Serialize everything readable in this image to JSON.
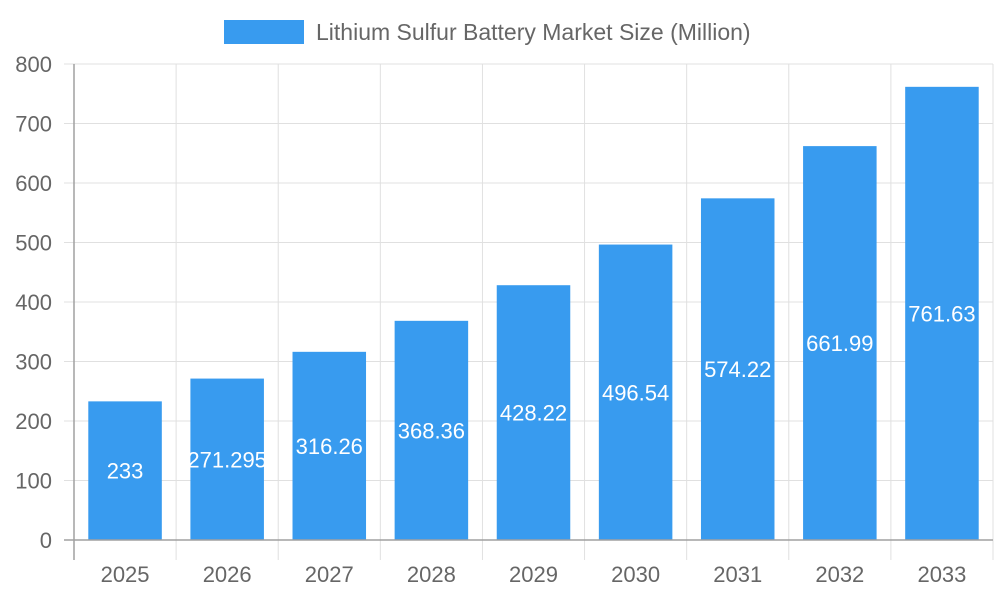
{
  "chart_data": {
    "type": "bar",
    "categories": [
      "2025",
      "2026",
      "2027",
      "2028",
      "2029",
      "2030",
      "2031",
      "2032",
      "2033"
    ],
    "series": [
      {
        "name": "Lithium Sulfur Battery Market Size (Million)",
        "values": [
          233,
          271.295,
          316.26,
          368.36,
          428.22,
          496.54,
          574.22,
          661.99,
          761.63
        ],
        "labels": [
          "233",
          "271.295",
          "316.26",
          "368.36",
          "428.22",
          "496.54",
          "574.22",
          "661.99",
          "761.63"
        ]
      }
    ],
    "ylim": [
      0,
      800
    ],
    "yticks": [
      "0",
      "100",
      "200",
      "300",
      "400",
      "500",
      "600",
      "700",
      "800"
    ],
    "grid": true,
    "legend": "top",
    "colors": {
      "bar": "#389BEF",
      "grid": "#E0E0E0",
      "axis": "#A0A0A0",
      "text": "#666666",
      "label": "#FFFFFF"
    }
  }
}
